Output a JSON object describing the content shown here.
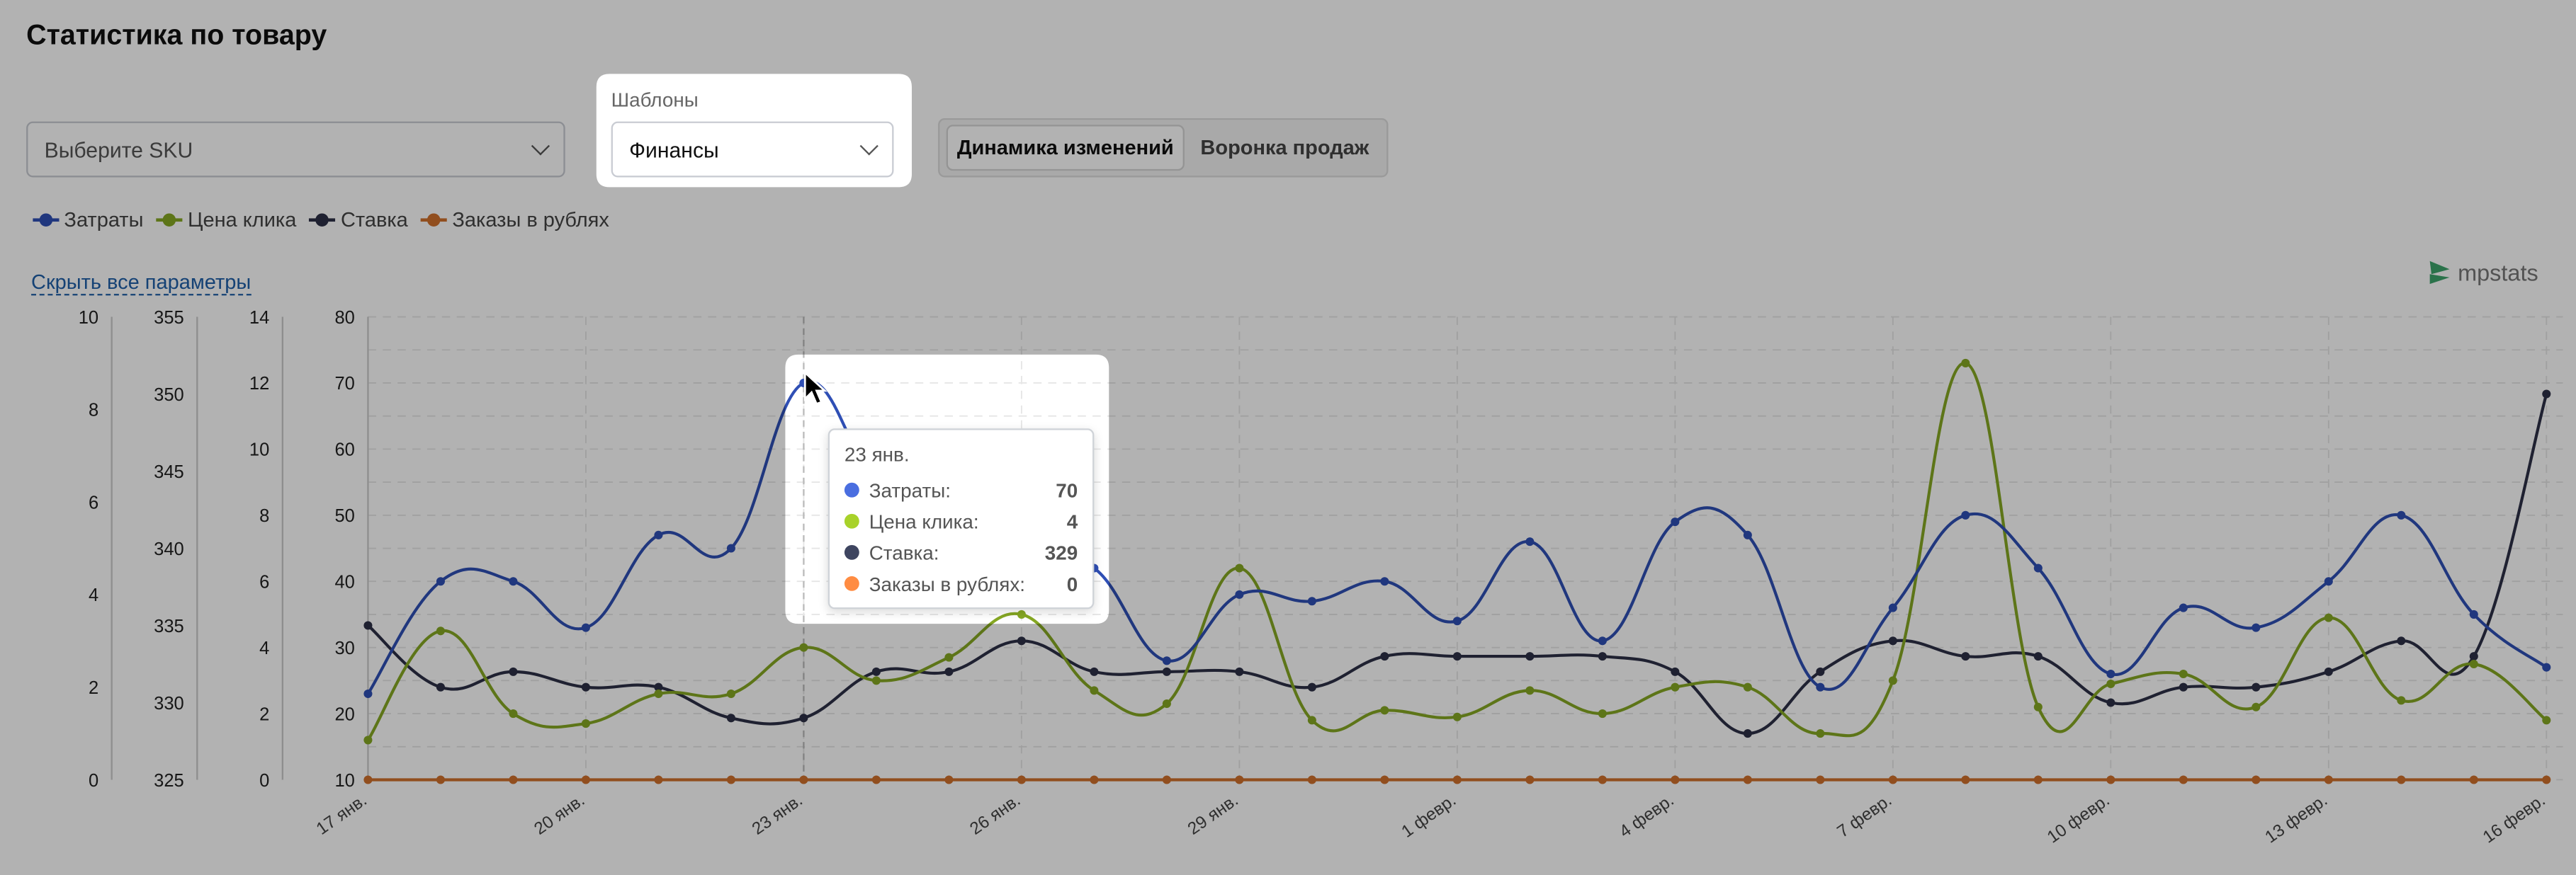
{
  "header": {
    "title": "Статистика по товару"
  },
  "filters": {
    "sku_placeholder": "Выберите SKU",
    "templates_label": "Шаблоны",
    "templates_value": "Финансы",
    "view_tabs": [
      {
        "label": "Динамика изменений",
        "active": true
      },
      {
        "label": "Воронка продаж",
        "active": false
      }
    ]
  },
  "hide_all_label": "Скрыть все параметры",
  "logo_text": "mpstats",
  "tooltip": {
    "date": "23 янв.",
    "rows": [
      {
        "label": "Затраты:",
        "value": "70",
        "color": "#4a6ee0"
      },
      {
        "label": "Цена клика:",
        "value": "4",
        "color": "#a8d22a"
      },
      {
        "label": "Ставка:",
        "value": "329",
        "color": "#3e4560"
      },
      {
        "label": "Заказы в рублях:",
        "value": "0",
        "color": "#ff8c42"
      }
    ]
  },
  "chart_data": {
    "type": "line",
    "x": [
      "17 янв.",
      "18 янв.",
      "19 янв.",
      "20 янв.",
      "21 янв.",
      "22 янв.",
      "23 янв.",
      "24 янв.",
      "25 янв.",
      "26 янв.",
      "27 янв.",
      "28 янв.",
      "29 янв.",
      "30 янв.",
      "31 янв.",
      "1 февр.",
      "2 февр.",
      "3 февр.",
      "4 февр.",
      "5 февр.",
      "6 февр.",
      "7 февр.",
      "8 февр.",
      "9 февр.",
      "10 февр.",
      "11 февр.",
      "12 февр.",
      "13 февр.",
      "14 февр.",
      "15 февр.",
      "16 февр."
    ],
    "x_tick_labels": [
      "17 янв.",
      "20 янв.",
      "23 янв.",
      "26 янв.",
      "29 янв.",
      "1 февр.",
      "4 февр.",
      "7 февр.",
      "10 февр.",
      "13 февр.",
      "16 февр."
    ],
    "y_axes": [
      {
        "id": "orders",
        "range": [
          0,
          10
        ],
        "ticks": [
          "0",
          "2",
          "4",
          "6",
          "8",
          "10"
        ]
      },
      {
        "id": "bid",
        "range": [
          325,
          355
        ],
        "ticks": [
          "325",
          "330",
          "335",
          "340",
          "345",
          "350",
          "355"
        ]
      },
      {
        "id": "cpc",
        "range": [
          0,
          14
        ],
        "ticks": [
          "0",
          "2",
          "4",
          "6",
          "8",
          "10",
          "12",
          "14"
        ]
      },
      {
        "id": "cost",
        "range": [
          10,
          80
        ],
        "ticks": [
          "10",
          "20",
          "30",
          "40",
          "50",
          "60",
          "70",
          "80"
        ]
      }
    ],
    "series": [
      {
        "name": "Затраты",
        "axis": "cost",
        "color": "#2f4fb5",
        "values": [
          23,
          40,
          40,
          33,
          47,
          45,
          70,
          55,
          48,
          44,
          42,
          28,
          38,
          37,
          40,
          34,
          46,
          31,
          49,
          47,
          24,
          36,
          50,
          42,
          26,
          36,
          33,
          40,
          50,
          35,
          27
        ]
      },
      {
        "name": "Цена клика",
        "axis": "cpc",
        "color": "#86a823",
        "values": [
          1.2,
          4.5,
          2.0,
          1.7,
          2.6,
          2.6,
          4,
          3.0,
          3.7,
          5.0,
          2.7,
          2.3,
          6.4,
          1.8,
          2.1,
          1.9,
          2.7,
          2.0,
          2.8,
          2.8,
          1.4,
          3.0,
          12.6,
          2.2,
          2.9,
          3.2,
          2.2,
          4.9,
          2.4,
          3.5,
          1.8
        ]
      },
      {
        "name": "Ставка",
        "axis": "bid",
        "color": "#2d3047",
        "values": [
          335,
          331,
          332,
          331,
          331,
          329,
          329,
          332,
          332,
          334,
          332,
          332,
          332,
          331,
          333,
          333,
          333,
          333,
          332,
          328,
          332,
          334,
          333,
          333,
          330,
          331,
          331,
          332,
          334,
          333,
          350
        ]
      },
      {
        "name": "Заказы в рублях",
        "axis": "orders",
        "color": "#d0702c",
        "values": [
          0,
          0,
          0,
          0,
          0,
          0,
          0,
          0,
          0,
          0,
          0,
          0,
          0,
          0,
          0,
          0,
          0,
          0,
          0,
          0,
          0,
          0,
          0,
          0,
          0,
          0,
          0,
          0,
          0,
          0,
          0
        ]
      }
    ],
    "legend": "top-left",
    "grid": true
  }
}
